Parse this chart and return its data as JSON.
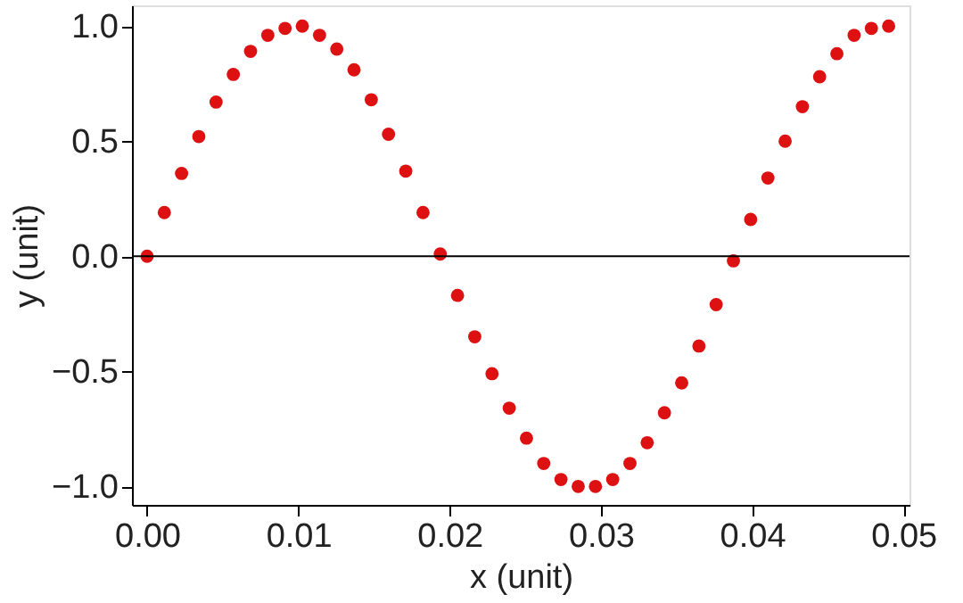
{
  "chart_data": {
    "type": "scatter",
    "xlabel": "x (unit)",
    "ylabel": "y (unit)",
    "x": [
      0,
      0.00114,
      0.00228,
      0.00342,
      0.00456,
      0.0057,
      0.00684,
      0.00798,
      0.00912,
      0.01026,
      0.0114,
      0.01254,
      0.01368,
      0.01482,
      0.01596,
      0.0171,
      0.01824,
      0.01938,
      0.02052,
      0.02166,
      0.0228,
      0.02394,
      0.02508,
      0.02622,
      0.02736,
      0.0285,
      0.02964,
      0.03078,
      0.03192,
      0.03306,
      0.0342,
      0.03534,
      0.03648,
      0.03762,
      0.03876,
      0.0399,
      0.04104,
      0.04218,
      0.04332,
      0.04446,
      0.0456,
      0.04674,
      0.04788,
      0.04902
    ],
    "series": [
      {
        "color": "#dd1111",
        "values": [
          0,
          0.19,
          0.36,
          0.52,
          0.67,
          0.79,
          0.89,
          0.96,
          0.99,
          1.0,
          0.96,
          0.9,
          0.81,
          0.68,
          0.53,
          0.37,
          0.19,
          0.01,
          -0.17,
          -0.35,
          -0.51,
          -0.66,
          -0.79,
          -0.9,
          -0.97,
          -1.0,
          -1.0,
          -0.97,
          -0.9,
          -0.81,
          -0.68,
          -0.55,
          -0.39,
          -0.21,
          -0.02,
          0.16,
          0.34,
          0.5,
          0.65,
          0.78,
          0.88,
          0.96,
          0.99,
          1.0
        ]
      }
    ],
    "marker": "circle",
    "xlim": [
      -0.001,
      0.0504
    ],
    "xticks": [
      {
        "value": 0,
        "label": "0.00"
      },
      0.01,
      0.02,
      0.03,
      0.04,
      0.05
    ],
    "ylim": [
      -1.08,
      1.09
    ],
    "yticks": [
      {
        "value": -1,
        "label": "−1.0"
      },
      {
        "value": -0.5,
        "label": "−0.5"
      },
      {
        "value": 0,
        "label": "0.0"
      },
      0.5,
      {
        "value": 1,
        "label": "1.0"
      }
    ],
    "ref_lines": [
      {
        "axis": "y",
        "value": 0,
        "color": "#000000"
      }
    ],
    "grid": false,
    "legend": false
  }
}
